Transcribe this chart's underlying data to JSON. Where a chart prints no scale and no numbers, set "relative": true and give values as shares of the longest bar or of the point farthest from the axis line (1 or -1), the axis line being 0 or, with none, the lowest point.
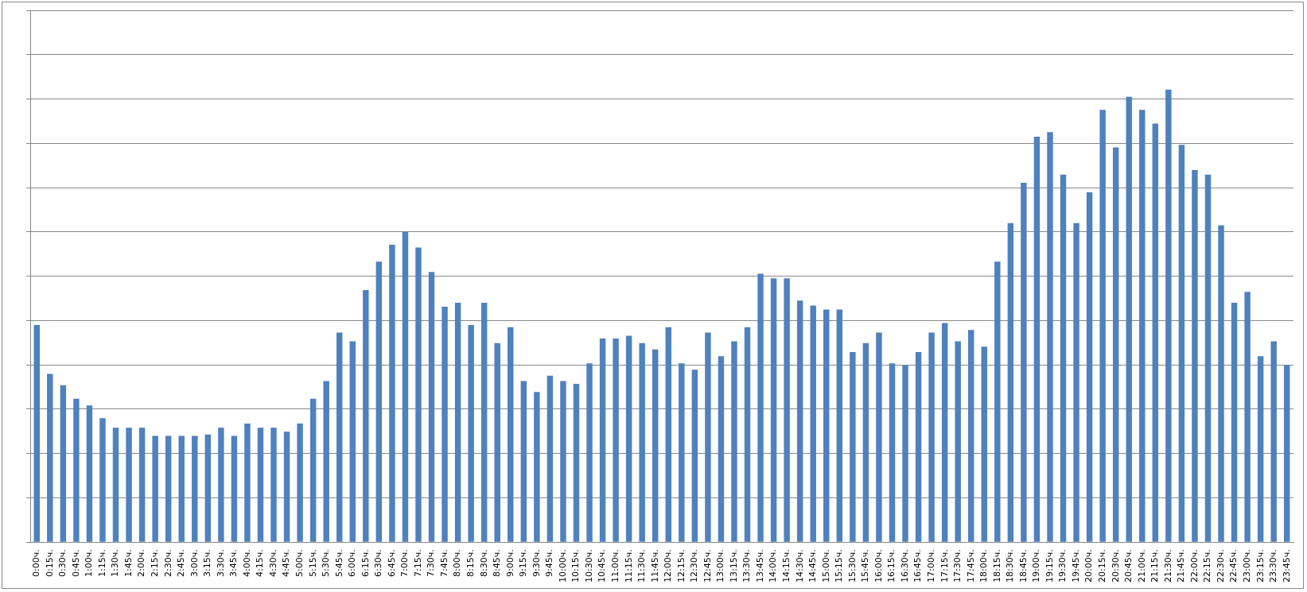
{
  "chart_data": {
    "type": "bar",
    "relative": true,
    "grid": "y",
    "color": "#4f81bd",
    "categories": [
      "0:00ч.",
      "0:15ч.",
      "0:30ч.",
      "0:45ч.",
      "1:00ч.",
      "1:15ч.",
      "1:30ч.",
      "1:45ч.",
      "2:00ч.",
      "2:15ч.",
      "2:30ч.",
      "2:45ч.",
      "3:00ч.",
      "3:15ч.",
      "3:30ч.",
      "3:45ч.",
      "4:00ч.",
      "4:15ч.",
      "4:30ч.",
      "4:45ч.",
      "5:00ч.",
      "5:15ч.",
      "5:30ч.",
      "5:45ч.",
      "6:00ч.",
      "6:15ч.",
      "6:30ч.",
      "6:45ч.",
      "7:00ч.",
      "7:15ч.",
      "7:30ч.",
      "7:45ч.",
      "8:00ч.",
      "8:15ч.",
      "8:30ч.",
      "8:45ч.",
      "9:00ч.",
      "9:15ч.",
      "9:30ч.",
      "9:45ч.",
      "10:00ч.",
      "10:15ч.",
      "10:30ч.",
      "10:45ч.",
      "11:00ч.",
      "11:15ч.",
      "11:30ч.",
      "11:45ч.",
      "12:00ч.",
      "12:15ч.",
      "12:30ч.",
      "12:45ч.",
      "13:00ч.",
      "13:15ч.",
      "13:30ч.",
      "13:45ч.",
      "14:00ч.",
      "14:15ч.",
      "14:30ч.",
      "14:45ч.",
      "15:00ч.",
      "15:15ч.",
      "15:30ч.",
      "15:45ч.",
      "16:00ч.",
      "16:15ч.",
      "16:30ч.",
      "16:45ч.",
      "17:00ч.",
      "17:15ч.",
      "17:30ч.",
      "17:45ч.",
      "18:00ч.",
      "18:15ч.",
      "18:30ч.",
      "18:45ч.",
      "19:00ч.",
      "19:15ч.",
      "19:30ч.",
      "19:45ч.",
      "20:00ч.",
      "20:15ч.",
      "20:30ч.",
      "20:45ч.",
      "21:00ч.",
      "21:15ч.",
      "21:30ч.",
      "21:45ч.",
      "22:00ч.",
      "22:15ч.",
      "22:30ч.",
      "22:45ч.",
      "23:00ч.",
      "23:15ч.",
      "23:30ч.",
      "23:45ч."
    ],
    "values": [
      0.48,
      0.372,
      0.347,
      0.317,
      0.302,
      0.274,
      0.253,
      0.253,
      0.253,
      0.235,
      0.235,
      0.235,
      0.235,
      0.238,
      0.253,
      0.235,
      0.262,
      0.253,
      0.253,
      0.244,
      0.262,
      0.317,
      0.356,
      0.463,
      0.444,
      0.557,
      0.62,
      0.657,
      0.685,
      0.651,
      0.597,
      0.52,
      0.529,
      0.48,
      0.529,
      0.44,
      0.475,
      0.356,
      0.332,
      0.368,
      0.356,
      0.35,
      0.395,
      0.45,
      0.45,
      0.456,
      0.44,
      0.426,
      0.475,
      0.395,
      0.381,
      0.463,
      0.411,
      0.444,
      0.475,
      0.593,
      0.583,
      0.583,
      0.534,
      0.523,
      0.514,
      0.514,
      0.42,
      0.44,
      0.463,
      0.395,
      0.391,
      0.42,
      0.463,
      0.484,
      0.444,
      0.469,
      0.432,
      0.62,
      0.705,
      0.794,
      0.896,
      0.906,
      0.812,
      0.705,
      0.773,
      0.955,
      0.872,
      0.984,
      0.955,
      0.925,
      1,
      0.878,
      0.822,
      0.812,
      0.7,
      0.529,
      0.553,
      0.411,
      0.444,
      0.391
    ]
  }
}
